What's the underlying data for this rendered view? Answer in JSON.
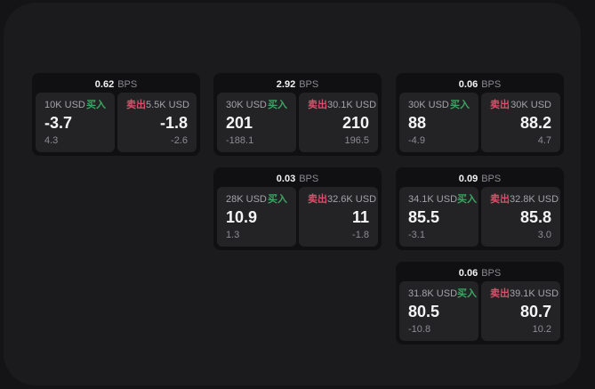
{
  "labels": {
    "bps_unit": "BPS",
    "buy": "买入",
    "sell": "卖出"
  },
  "colors": {
    "buy": "#3fa463",
    "sell": "#d9506a",
    "window_bg": "#1b1b1d",
    "card_bg": "#101012",
    "panel_bg": "#232326"
  },
  "cards": [
    {
      "bps": "0.62",
      "buy": {
        "amount": "10K USD",
        "price": "-3.7",
        "change": "4.3"
      },
      "sell": {
        "amount": "5.5K USD",
        "price": "-1.8",
        "change": "-2.6"
      }
    },
    {
      "bps": "2.92",
      "buy": {
        "amount": "30K USD",
        "price": "201",
        "change": "-188.1"
      },
      "sell": {
        "amount": "30.1K USD",
        "price": "210",
        "change": "196.5"
      }
    },
    {
      "bps": "0.06",
      "buy": {
        "amount": "30K USD",
        "price": "88",
        "change": "-4.9"
      },
      "sell": {
        "amount": "30K USD",
        "price": "88.2",
        "change": "4.7"
      }
    },
    {
      "bps": "0.03",
      "buy": {
        "amount": "28K USD",
        "price": "10.9",
        "change": "1.3"
      },
      "sell": {
        "amount": "32.6K USD",
        "price": "11",
        "change": "-1.8"
      }
    },
    {
      "bps": "0.09",
      "buy": {
        "amount": "34.1K USD",
        "price": "85.5",
        "change": "-3.1"
      },
      "sell": {
        "amount": "32.8K USD",
        "price": "85.8",
        "change": "3.0"
      }
    },
    {
      "bps": "0.06",
      "buy": {
        "amount": "31.8K USD",
        "price": "80.5",
        "change": "-10.8"
      },
      "sell": {
        "amount": "39.1K USD",
        "price": "80.7",
        "change": "10.2"
      }
    }
  ]
}
